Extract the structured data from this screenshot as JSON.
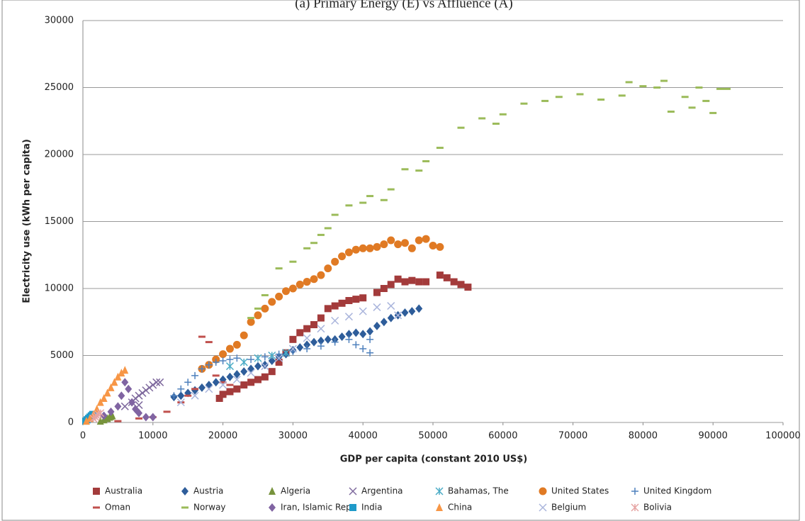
{
  "chart_data": {
    "type": "scatter",
    "title": "(a) Primary Energy (E) vs Affluence (A)",
    "x_label": "GDP per capita (constant 2010 US$)",
    "y_label": "Electricity use (kWh per capita)",
    "xlim": [
      0,
      100000
    ],
    "ylim": [
      0,
      30000
    ],
    "xticks": [
      0,
      10000,
      20000,
      30000,
      40000,
      50000,
      60000,
      70000,
      80000,
      90000,
      100000
    ],
    "yticks": [
      0,
      5000,
      10000,
      15000,
      20000,
      25000,
      30000
    ],
    "grid": true,
    "legend": "bottom",
    "series": [
      {
        "name": "Australia",
        "color": "#a33b3b",
        "marker": "square",
        "x": [
          19500,
          20000,
          21000,
          22000,
          23000,
          24000,
          25000,
          26000,
          27000,
          28000,
          29000,
          30000,
          31000,
          32000,
          33000,
          34000,
          35000,
          36000,
          37000,
          38000,
          39000,
          40000,
          42000,
          43000,
          44000,
          45000,
          46000,
          47000,
          48000,
          49000,
          51000,
          52000,
          53000,
          54000,
          55000
        ],
        "values": [
          1800,
          2100,
          2300,
          2500,
          2800,
          3000,
          3200,
          3400,
          3800,
          4500,
          5200,
          6200,
          6700,
          7000,
          7300,
          7800,
          8500,
          8700,
          8900,
          9100,
          9200,
          9300,
          9700,
          10000,
          10300,
          10700,
          10500,
          10600,
          10500,
          10500,
          11000,
          10800,
          10500,
          10300,
          10100
        ]
      },
      {
        "name": "Austria",
        "color": "#2e5d9a",
        "marker": "diamond",
        "x": [
          13000,
          14000,
          15000,
          16000,
          17000,
          18000,
          19000,
          20000,
          21000,
          22000,
          23000,
          24000,
          25000,
          26000,
          27000,
          28000,
          29000,
          30000,
          31000,
          32000,
          33000,
          34000,
          35000,
          36000,
          37000,
          38000,
          39000,
          40000,
          41000,
          42000,
          43000,
          44000,
          45000,
          46000,
          47000,
          48000
        ],
        "values": [
          1900,
          2000,
          2200,
          2400,
          2600,
          2800,
          3000,
          3200,
          3400,
          3600,
          3800,
          4000,
          4200,
          4300,
          4600,
          4900,
          5100,
          5400,
          5600,
          5800,
          6000,
          6100,
          6200,
          6200,
          6400,
          6600,
          6700,
          6600,
          6800,
          7200,
          7500,
          7800,
          8000,
          8200,
          8300,
          8500
        ]
      },
      {
        "name": "Algeria",
        "color": "#77933c",
        "marker": "triangle",
        "x": [
          2500,
          3000,
          3200,
          3500,
          3800,
          4000,
          4200
        ],
        "values": [
          100,
          200,
          350,
          300,
          400,
          450,
          500
        ]
      },
      {
        "name": "Argentina",
        "color": "#7f6a9e",
        "marker": "cross",
        "x": [
          6000,
          7000,
          7500,
          8000,
          8500,
          9000,
          9500,
          10000,
          10500,
          11000,
          8000
        ],
        "values": [
          1200,
          1500,
          1800,
          2000,
          2200,
          2400,
          2600,
          2800,
          3000,
          3000,
          1300
        ]
      },
      {
        "name": "Bahamas, The",
        "color": "#4bacc6",
        "marker": "star",
        "x": [
          21000,
          23000,
          25000,
          27000,
          29000
        ],
        "values": [
          4200,
          4500,
          4800,
          5000,
          5200
        ]
      },
      {
        "name": "United States",
        "color": "#e07a24",
        "marker": "circle",
        "x": [
          17000,
          18000,
          19000,
          20000,
          21000,
          22000,
          23000,
          24000,
          25000,
          26000,
          27000,
          28000,
          29000,
          30000,
          31000,
          32000,
          33000,
          34000,
          35000,
          36000,
          37000,
          38000,
          39000,
          40000,
          41000,
          42000,
          43000,
          44000,
          45000,
          46000,
          47000,
          48000,
          49000,
          50000,
          51000
        ],
        "values": [
          4000,
          4300,
          4700,
          5100,
          5500,
          5800,
          6500,
          7500,
          8000,
          8500,
          9000,
          9400,
          9800,
          10000,
          10300,
          10500,
          10700,
          11000,
          11500,
          12000,
          12400,
          12700,
          12900,
          13000,
          13000,
          13100,
          13300,
          13600,
          13300,
          13400,
          13000,
          13600,
          13700,
          13200,
          13100
        ]
      },
      {
        "name": "United Kingdom",
        "color": "#4f81bd",
        "marker": "plus",
        "x": [
          13000,
          14000,
          15000,
          16000,
          17000,
          18000,
          19000,
          20000,
          21000,
          22000,
          24000,
          26000,
          28000,
          30000,
          32000,
          34000,
          36000,
          38000,
          39000,
          40000,
          41000,
          41000
        ],
        "values": [
          2000,
          2500,
          3000,
          3500,
          4000,
          4300,
          4500,
          4600,
          4700,
          4800,
          4700,
          4900,
          5100,
          5300,
          5500,
          5700,
          6000,
          6200,
          5800,
          5500,
          5200,
          6200
        ]
      },
      {
        "name": "Oman",
        "color": "#c0504d",
        "marker": "dash",
        "x": [
          5000,
          8000,
          10000,
          12000,
          14000,
          15000,
          16000,
          17000,
          18000,
          19000,
          20000,
          21000
        ],
        "values": [
          100,
          300,
          400,
          800,
          1500,
          2000,
          2500,
          6400,
          6000,
          3500,
          3000,
          2800
        ]
      },
      {
        "name": "Norway",
        "color": "#9bbb59",
        "marker": "dash",
        "x": [
          24000,
          25000,
          26000,
          28000,
          30000,
          32000,
          33000,
          34000,
          35000,
          36000,
          38000,
          40000,
          41000,
          43000,
          44000,
          46000,
          48000,
          49000,
          51000,
          54000,
          57000,
          59000,
          60000,
          63000,
          66000,
          68000,
          71000,
          74000,
          77000,
          78000,
          80000,
          82000,
          83000,
          84000,
          86000,
          87000,
          88000,
          89000,
          90000,
          91000,
          92000
        ],
        "values": [
          7800,
          8500,
          9500,
          11500,
          12000,
          13000,
          13400,
          14000,
          14500,
          15500,
          16200,
          16400,
          16900,
          16600,
          17400,
          18900,
          18800,
          19500,
          20500,
          22000,
          22700,
          22300,
          23000,
          23800,
          24000,
          24300,
          24500,
          24100,
          24400,
          25400,
          25100,
          25000,
          25500,
          23200,
          24300,
          23500,
          25000,
          24000,
          23100,
          24900,
          24900
        ]
      },
      {
        "name": "Iran, Islamic Rep.",
        "color": "#8064a2",
        "marker": "diamond",
        "x": [
          3000,
          4000,
          5000,
          6000,
          6500,
          7000,
          7500,
          8000,
          9000,
          10000,
          5500
        ],
        "values": [
          500,
          800,
          1200,
          3000,
          2500,
          1500,
          1000,
          700,
          400,
          400,
          2000
        ]
      },
      {
        "name": "India",
        "color": "#1f9ac9",
        "marker": "square",
        "x": [
          400,
          600,
          800,
          1000,
          1200,
          1400
        ],
        "values": [
          100,
          200,
          300,
          400,
          500,
          600
        ]
      },
      {
        "name": "China",
        "color": "#f79646",
        "marker": "triangle",
        "x": [
          500,
          1000,
          1500,
          2000,
          2500,
          3000,
          3500,
          4000,
          4500,
          5000,
          5500,
          6000
        ],
        "values": [
          100,
          300,
          600,
          1000,
          1500,
          1800,
          2200,
          2600,
          3000,
          3400,
          3700,
          3900
        ]
      },
      {
        "name": "Belgium",
        "color": "#aab5dc",
        "marker": "cross",
        "x": [
          14000,
          16000,
          18000,
          20000,
          22000,
          24000,
          26000,
          28000,
          30000,
          32000,
          34000,
          36000,
          38000,
          40000,
          42000,
          44000,
          45000
        ],
        "values": [
          1500,
          2000,
          2500,
          2800,
          3200,
          3700,
          4200,
          4800,
          5500,
          6300,
          7000,
          7600,
          7900,
          8300,
          8600,
          8700,
          8000
        ]
      },
      {
        "name": "Bolivia",
        "color": "#e6a4a3",
        "marker": "star",
        "x": [
          1500,
          1800,
          2000,
          2200,
          2500
        ],
        "values": [
          300,
          400,
          500,
          600,
          700
        ]
      }
    ]
  }
}
